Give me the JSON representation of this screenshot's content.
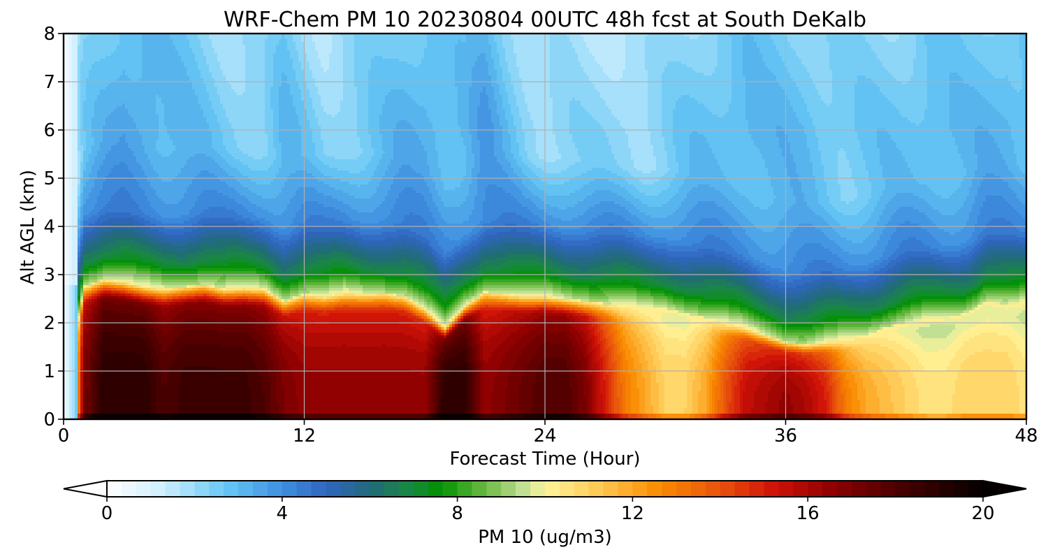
{
  "chart_data": {
    "type": "heatmap",
    "title": "WRF-Chem PM 10  20230804 00UTC 48h fcst at South DeKalb",
    "xlabel": "Forecast Time (Hour)",
    "ylabel": "Alt AGL (km)",
    "xlim": [
      0,
      48
    ],
    "ylim": [
      0,
      8
    ],
    "x_ticks": [
      "0",
      "12",
      "24",
      "36",
      "48"
    ],
    "y_ticks": [
      "0",
      "1",
      "2",
      "3",
      "4",
      "5",
      "6",
      "7",
      "8"
    ],
    "grid": true,
    "colorbar": {
      "label": "PM 10  (ug/m3)",
      "range": [
        0,
        20
      ],
      "ticks": [
        "0",
        "4",
        "8",
        "12",
        "16",
        "20"
      ],
      "extend": "both",
      "stops": [
        {
          "v": 0,
          "c": "#ffffff"
        },
        {
          "v": 1.3,
          "c": "#cdeefd"
        },
        {
          "v": 2.7,
          "c": "#66c8f5"
        },
        {
          "v": 4.0,
          "c": "#3f8fe0"
        },
        {
          "v": 5.0,
          "c": "#2f65bf"
        },
        {
          "v": 6.0,
          "c": "#226a7a"
        },
        {
          "v": 7.0,
          "c": "#178a3c"
        },
        {
          "v": 7.6,
          "c": "#009100"
        },
        {
          "v": 8.6,
          "c": "#66b840"
        },
        {
          "v": 9.6,
          "c": "#cbe49c"
        },
        {
          "v": 10.0,
          "c": "#fff59a"
        },
        {
          "v": 11.3,
          "c": "#ffc650"
        },
        {
          "v": 12.6,
          "c": "#fa8c00"
        },
        {
          "v": 14.0,
          "c": "#e8520c"
        },
        {
          "v": 15.2,
          "c": "#cf1208"
        },
        {
          "v": 16.6,
          "c": "#8c0000"
        },
        {
          "v": 18.0,
          "c": "#4c0000"
        },
        {
          "v": 20.0,
          "c": "#050000"
        }
      ]
    },
    "hours": [
      0,
      1,
      2,
      3,
      4,
      5,
      6,
      7,
      8,
      9,
      10,
      11,
      12,
      13,
      14,
      15,
      16,
      17,
      18,
      19,
      20,
      21,
      22,
      23,
      24,
      25,
      26,
      27,
      28,
      29,
      30,
      31,
      32,
      33,
      34,
      35,
      36,
      37,
      38,
      39,
      40,
      41,
      42,
      43,
      44,
      45,
      46,
      47,
      48
    ],
    "pbl_top_km": [
      0.0,
      2.75,
      2.9,
      2.85,
      2.75,
      2.7,
      2.75,
      2.8,
      2.7,
      2.72,
      2.7,
      2.45,
      2.6,
      2.55,
      2.62,
      2.6,
      2.62,
      2.55,
      2.3,
      1.9,
      2.35,
      2.65,
      2.6,
      2.55,
      2.55,
      2.5,
      2.45,
      2.4,
      2.35,
      2.3,
      2.3,
      2.2,
      2.1,
      2.0,
      1.9,
      1.75,
      1.6,
      1.55,
      1.6,
      1.65,
      1.75,
      1.9,
      2.0,
      2.05,
      2.1,
      2.2,
      2.45,
      2.35,
      2.4
    ],
    "surface_pm10": [
      1,
      17,
      19,
      19,
      19,
      18,
      18.5,
      18.5,
      18.5,
      18.5,
      18,
      17,
      16.5,
      16.5,
      16.5,
      16.5,
      16.5,
      16.5,
      16.5,
      19,
      19,
      16.5,
      17,
      17.5,
      18,
      18,
      17,
      15,
      13,
      12,
      11,
      11,
      12,
      14,
      15.5,
      16,
      16.5,
      16,
      15,
      13,
      12,
      11.5,
      11,
      10.5,
      10.5,
      11,
      11,
      11,
      10.5
    ],
    "free_trop_pm10": [
      0.8,
      2.5,
      3.0,
      3.6,
      3.6,
      3.2,
      3.0,
      2.8,
      2.6,
      2.5,
      2.4,
      3.0,
      2.6,
      2.3,
      2.5,
      2.6,
      2.8,
      3.2,
      3.4,
      3.2,
      3.1,
      3.6,
      3.0,
      2.5,
      2.2,
      2.2,
      2.1,
      2.2,
      2.3,
      2.2,
      2.3,
      2.6,
      2.9,
      3.1,
      3.2,
      3.0,
      3.0,
      3.0,
      2.8,
      2.6,
      2.6,
      2.7,
      2.9,
      3.1,
      3.0,
      2.9,
      3.1,
      3.3,
      3.1
    ]
  }
}
